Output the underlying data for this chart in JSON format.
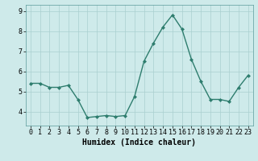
{
  "x": [
    0,
    1,
    2,
    3,
    4,
    5,
    6,
    7,
    8,
    9,
    10,
    11,
    12,
    13,
    14,
    15,
    16,
    17,
    18,
    19,
    20,
    21,
    22,
    23
  ],
  "y": [
    5.4,
    5.4,
    5.2,
    5.2,
    5.3,
    4.6,
    3.7,
    3.75,
    3.8,
    3.75,
    3.8,
    4.75,
    6.5,
    7.4,
    8.2,
    8.8,
    8.1,
    6.6,
    5.5,
    4.6,
    4.6,
    4.5,
    5.2,
    5.8
  ],
  "line_color": "#2e7d6e",
  "marker": "D",
  "marker_size": 2,
  "bg_color": "#ceeaea",
  "grid_color": "#aacfcf",
  "xlabel": "Humidex (Indice chaleur)",
  "ylabel": "",
  "ylim": [
    3.3,
    9.3
  ],
  "xlim": [
    -0.5,
    23.5
  ],
  "title": "",
  "yticks": [
    4,
    5,
    6,
    7,
    8,
    9
  ],
  "xticks": [
    0,
    1,
    2,
    3,
    4,
    5,
    6,
    7,
    8,
    9,
    10,
    11,
    12,
    13,
    14,
    15,
    16,
    17,
    18,
    19,
    20,
    21,
    22,
    23
  ],
  "xlabel_fontsize": 7,
  "tick_fontsize": 6,
  "linewidth": 1.0
}
